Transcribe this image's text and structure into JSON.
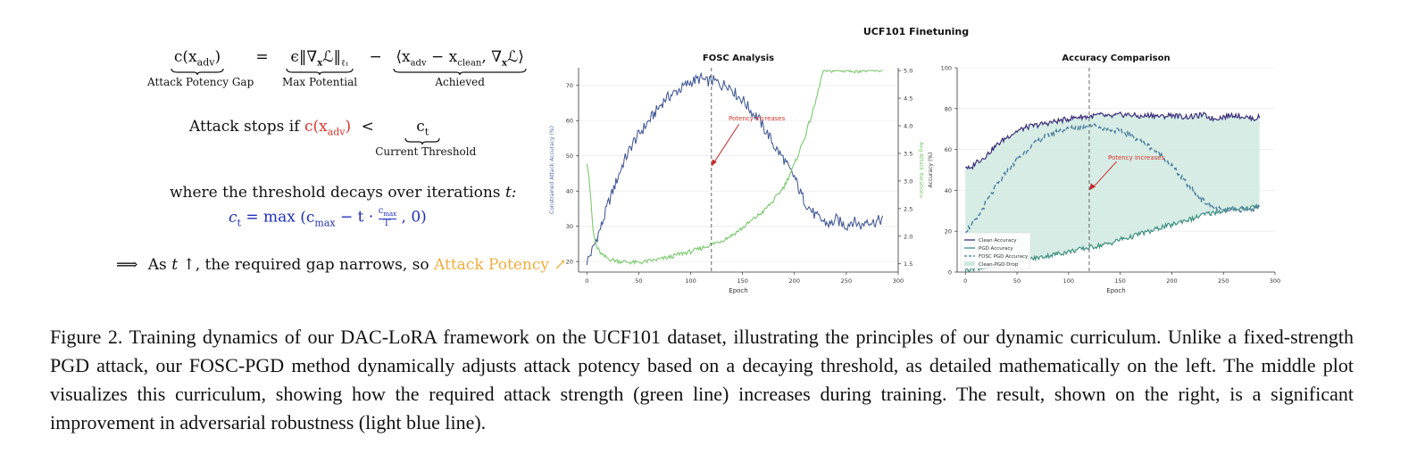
{
  "equations": {
    "gap_lhs": "c(x",
    "gap_lhs_sub": "adv",
    "gap_lhs_close": ")",
    "gap_lhs_label": "Attack Potency Gap",
    "equals": "=",
    "max_potential_expr": "ϵ‖∇",
    "max_potential_x": "x",
    "max_potential_rest": "ℒ‖",
    "max_potential_sub": "ℓ₁",
    "max_potential_label": "Max Potential",
    "minus": "−",
    "achieved_expr": "⟨x",
    "achieved_sub1": "adv",
    "achieved_mid": " − x",
    "achieved_sub2": "clean",
    "achieved_end": ", ∇",
    "achieved_x": "x",
    "achieved_close": "ℒ⟩",
    "achieved_label": "Achieved",
    "stop_prefix": "Attack stops if",
    "stop_c": "c(x",
    "stop_c_sub": "adv",
    "stop_c_close": ")",
    "stop_lt": "<",
    "threshold_c": "c",
    "threshold_sub": "t",
    "threshold_label": "Current Threshold",
    "decay_text": "where the threshold decays over iterations",
    "decay_var": "t:",
    "ct_lhs": "c",
    "ct_sub": "t",
    "ct_eq": "= max",
    "ct_open": "(c",
    "ct_max_sub": "max",
    "ct_minus": " − t ·",
    "ct_frac_num": "c",
    "ct_frac_num_sub": "max",
    "ct_frac_den": "T′",
    "ct_close": ", 0)",
    "implies_arrow": "⟹",
    "implies_text1": "As",
    "implies_var": "t",
    "implies_up": "↑,",
    "implies_text2": "the required gap narrows, so",
    "implies_highlight": "Attack Potency ↗"
  },
  "figure_title": "UCF101 Finetuning",
  "chart_data": [
    {
      "type": "line",
      "title": "FOSC Analysis",
      "xlabel": "Epoch",
      "ylabel": "Constrained Attack Accuracy (%)",
      "ylabel_right": "Avg Attack Iterations",
      "xlim": [
        -8,
        300
      ],
      "ylim": [
        17,
        75
      ],
      "ylim_right": [
        1.35,
        5.05
      ],
      "xticks": [
        0,
        50,
        100,
        150,
        200,
        250,
        300
      ],
      "yticks": [
        20,
        30,
        40,
        50,
        60,
        70
      ],
      "yticks_right": [
        1.5,
        2.0,
        2.5,
        3.0,
        3.5,
        4.0,
        4.5,
        5.0
      ],
      "xtick_labels": [
        "0",
        "50",
        "100",
        "150",
        "200",
        "250",
        "300"
      ],
      "ytick_labels": [
        "20",
        "30",
        "40",
        "50",
        "60",
        "70"
      ],
      "ytick_right_labels": [
        "1.5",
        "2.0",
        "2.5",
        "3.0",
        "3.5",
        "4.0",
        "4.5",
        "5.0"
      ],
      "grid": true,
      "vline_x": 120,
      "annotation": {
        "text": "Potency Increases",
        "at": [
          120,
          47
        ],
        "text_at": [
          150,
          60
        ]
      },
      "series": [
        {
          "color": "#3b5291",
          "axis": "left",
          "x": [
            0,
            5,
            10,
            15,
            20,
            25,
            30,
            35,
            40,
            45,
            50,
            55,
            60,
            65,
            70,
            75,
            80,
            85,
            90,
            95,
            100,
            105,
            110,
            115,
            120,
            125,
            130,
            135,
            140,
            145,
            150,
            155,
            160,
            165,
            170,
            175,
            180,
            185,
            190,
            195,
            200,
            205,
            210,
            215,
            220,
            225,
            230,
            235,
            240,
            245,
            250,
            255,
            260,
            265,
            270,
            275,
            280,
            285
          ],
          "values": [
            20,
            23,
            27,
            31,
            36,
            40,
            44,
            48,
            51,
            54,
            56,
            58,
            60,
            62,
            64,
            66,
            67,
            68,
            69,
            70,
            71,
            71.5,
            72,
            71,
            71.5,
            71,
            70,
            70.5,
            69,
            67,
            66,
            64,
            62,
            61,
            58,
            56,
            53,
            51,
            49,
            46,
            44,
            40,
            37,
            35,
            33,
            32,
            31,
            30.5,
            32,
            31,
            30,
            31.5,
            31,
            30,
            32,
            31,
            31.5,
            32
          ]
        },
        {
          "color": "#7ac96d",
          "axis": "right",
          "x": [
            0,
            2,
            4,
            6,
            8,
            10,
            15,
            20,
            25,
            30,
            40,
            50,
            60,
            70,
            80,
            90,
            100,
            110,
            120,
            130,
            140,
            150,
            160,
            170,
            180,
            190,
            200,
            210,
            220,
            225,
            228,
            230,
            240,
            250,
            260,
            270,
            280,
            285
          ],
          "values": [
            3.35,
            3.1,
            2.6,
            2.1,
            1.9,
            1.78,
            1.65,
            1.6,
            1.57,
            1.55,
            1.53,
            1.52,
            1.55,
            1.58,
            1.62,
            1.68,
            1.72,
            1.78,
            1.85,
            1.92,
            2.02,
            2.15,
            2.3,
            2.45,
            2.65,
            2.9,
            3.3,
            3.8,
            4.4,
            4.8,
            5.0,
            5.0,
            5.0,
            5.0,
            5.0,
            5.0,
            5.0,
            5.0
          ]
        }
      ]
    },
    {
      "type": "line",
      "title": "Accuracy Comparison",
      "xlabel": "Epoch",
      "ylabel": "Accuracy (%)",
      "xlim": [
        -8,
        300
      ],
      "ylim": [
        0,
        100
      ],
      "xticks": [
        0,
        50,
        100,
        150,
        200,
        250,
        300
      ],
      "yticks": [
        0,
        20,
        40,
        60,
        80,
        100
      ],
      "xtick_labels": [
        "0",
        "50",
        "100",
        "150",
        "200",
        "250",
        "300"
      ],
      "ytick_labels": [
        "0",
        "20",
        "40",
        "60",
        "80",
        "100"
      ],
      "grid": true,
      "vline_x": 120,
      "annotation": {
        "text": "Potency Increases",
        "at": [
          120,
          40
        ],
        "text_at": [
          150,
          55
        ]
      },
      "legend_position": "lower-left",
      "series": [
        {
          "name": "Clean Accuracy",
          "color": "#3a2f7a",
          "style": "solid",
          "x": [
            0,
            5,
            10,
            15,
            20,
            30,
            40,
            50,
            60,
            70,
            80,
            90,
            100,
            110,
            120,
            130,
            140,
            150,
            160,
            170,
            180,
            190,
            200,
            210,
            220,
            230,
            240,
            250,
            260,
            270,
            280,
            285
          ],
          "values": [
            52,
            50,
            54,
            55,
            57,
            62,
            66,
            69,
            71,
            72,
            73,
            74,
            75,
            76,
            76,
            77,
            76,
            77,
            77,
            76,
            77,
            76,
            77,
            76,
            76,
            77,
            75,
            76,
            77,
            76,
            75,
            76
          ]
        },
        {
          "name": "PGD Accuracy",
          "color": "#3f8f80",
          "style": "solid",
          "x": [
            0,
            10,
            20,
            30,
            40,
            50,
            60,
            70,
            80,
            90,
            100,
            110,
            120,
            130,
            140,
            150,
            160,
            170,
            180,
            190,
            200,
            210,
            220,
            230,
            240,
            250,
            260,
            270,
            280,
            285
          ],
          "values": [
            1,
            2,
            2,
            3,
            4,
            5,
            6,
            7,
            8,
            9,
            10,
            11,
            12,
            13,
            14,
            16,
            17,
            19,
            20,
            22,
            23,
            25,
            26,
            28,
            29,
            30,
            31,
            31,
            32,
            32
          ]
        },
        {
          "name": "FOSC PGD Accuracy",
          "color": "#4a7a9a",
          "style": "dashed",
          "x": [
            0,
            10,
            20,
            30,
            40,
            50,
            60,
            70,
            80,
            90,
            100,
            110,
            120,
            130,
            140,
            150,
            160,
            170,
            180,
            190,
            200,
            210,
            220,
            230,
            240,
            250,
            260,
            270,
            280,
            285
          ],
          "values": [
            20,
            25,
            34,
            42,
            49,
            55,
            60,
            64,
            67,
            69,
            70,
            71,
            72,
            71,
            70,
            69,
            67,
            64,
            61,
            57,
            52,
            46,
            40,
            35,
            32,
            30,
            30,
            31,
            31,
            32
          ]
        },
        {
          "name": "Clean-PGD Drop",
          "color": "#cfe9e0",
          "style": "fill"
        }
      ]
    }
  ],
  "caption": "Figure 2. Training dynamics of our DAC-LoRA framework on the UCF101 dataset, illustrating the principles of our dynamic curriculum. Unlike a fixed-strength PGD attack, our FOSC-PGD method dynamically adjusts attack potency based on a decaying threshold, as detailed mathematically on the left. The middle plot visualizes this curriculum, showing how the required attack strength (green line) increases during training. The result, shown on the right, is a significant improvement in adversarial robustness (light blue line)."
}
